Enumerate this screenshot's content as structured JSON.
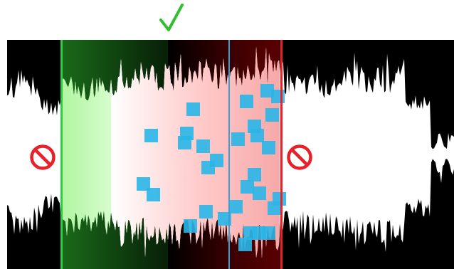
{
  "tool": "audio-selection-editor",
  "colors": {
    "background": "#000000",
    "waveform": "#ffffff",
    "include_region": "#2ecc40",
    "exclude_region": "#e8202a",
    "playhead": "#3a9fd6",
    "markers": "#29b6e8",
    "check": "#2fbf2f",
    "blocked": "#e8202a"
  },
  "icons": {
    "accept": "check-icon",
    "blocked_left": "no-entry-icon",
    "blocked_right": "no-entry-icon"
  },
  "selection": {
    "include_start_fraction": 0.12,
    "include_end_fraction": 0.49,
    "exclude_start_fraction": 0.36,
    "exclude_end_fraction": 0.61,
    "playhead_fraction": 0.49
  }
}
